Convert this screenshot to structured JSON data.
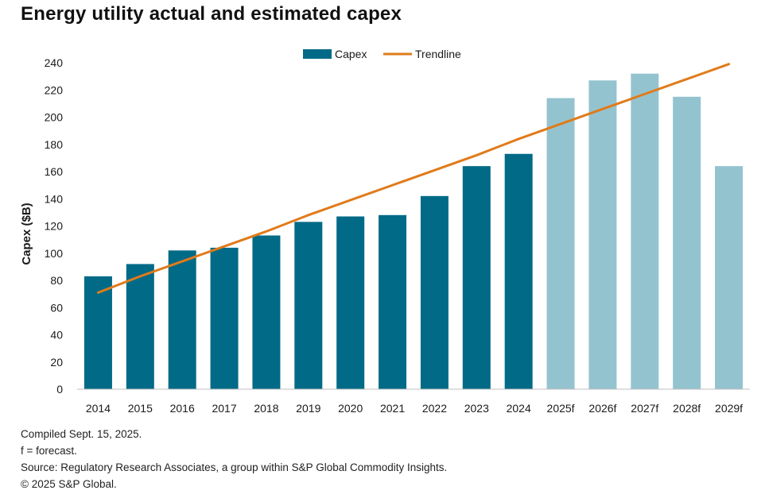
{
  "title": "Energy utility actual and estimated capex",
  "chart_data": {
    "type": "bar",
    "categories": [
      "2014",
      "2015",
      "2016",
      "2017",
      "2018",
      "2019",
      "2020",
      "2021",
      "2022",
      "2023",
      "2024",
      "2025f",
      "2026f",
      "2027f",
      "2028f",
      "2029f"
    ],
    "series": [
      {
        "name": "Capex",
        "values": [
          83,
          92,
          102,
          104,
          113,
          123,
          127,
          128,
          142,
          164,
          173,
          214,
          227,
          232,
          215,
          164
        ],
        "color_actual": "#006a87",
        "color_forecast": "#94c3d0",
        "forecast_from_index": 11
      },
      {
        "name": "Trendline",
        "type": "line",
        "values": [
          71,
          83,
          94,
          105,
          116,
          128,
          139,
          150,
          161,
          172,
          184,
          195,
          206,
          217,
          228,
          239
        ],
        "color": "#e07b1a"
      }
    ],
    "xlabel": "",
    "ylabel": "Capex ($B)",
    "ylim": [
      0,
      240
    ],
    "yticks": [
      0,
      20,
      40,
      60,
      80,
      100,
      120,
      140,
      160,
      180,
      200,
      220,
      240
    ],
    "grid": false,
    "legend_position": "top-center"
  },
  "notes": [
    "Compiled Sept. 15, 2025.",
    "f = forecast.",
    "Source: Regulatory Research Associates, a group within S&P Global Commodity Insights.",
    "© 2025 S&P Global."
  ]
}
